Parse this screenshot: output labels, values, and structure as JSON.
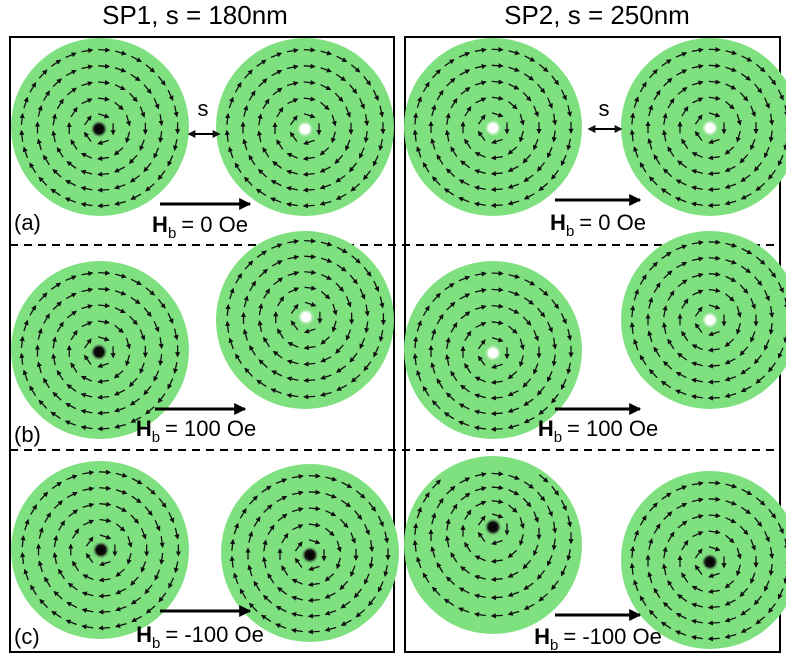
{
  "panel_labels": [
    "(a)",
    "(b)",
    "(c)"
  ],
  "columns": [
    {
      "title": "SP1, s = 180nm",
      "spacing_label": "s",
      "fields": [
        {
          "symbol": "H",
          "subscript": "b",
          "value": "= 0 Oe"
        },
        {
          "symbol": "H",
          "subscript": "b",
          "value": "= 100 Oe"
        },
        {
          "symbol": "H",
          "subscript": "b",
          "value": "= -100 Oe"
        }
      ]
    },
    {
      "title": "SP2, s = 250nm",
      "spacing_label": "s",
      "fields": [
        {
          "symbol": "H",
          "subscript": "b",
          "value": "= 0 Oe"
        },
        {
          "symbol": "H",
          "subscript": "b",
          "value": "= 100 Oe"
        },
        {
          "symbol": "H",
          "subscript": "b",
          "value": "= -100 Oe"
        }
      ]
    }
  ]
}
